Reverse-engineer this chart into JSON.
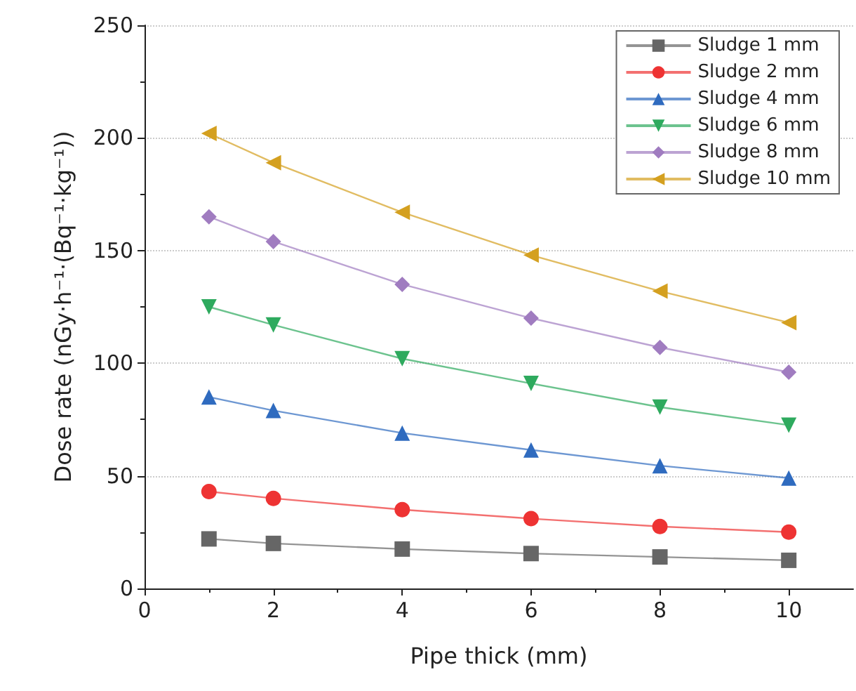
{
  "chart_data": {
    "type": "line",
    "xlabel": "Pipe thick (mm)",
    "ylabel": "Dose rate (nGy·h⁻¹·(Bq⁻¹·kg⁻¹))",
    "x": [
      1,
      2,
      4,
      6,
      8,
      10
    ],
    "series": [
      {
        "name": "Sludge 1 mm",
        "color": "#666666",
        "marker": "square",
        "values": [
          22,
          20,
          17.5,
          15.5,
          14,
          12.5
        ]
      },
      {
        "name": "Sludge 2 mm",
        "color": "#ee3333",
        "marker": "circle",
        "values": [
          43,
          40,
          35,
          31,
          27.5,
          25
        ]
      },
      {
        "name": "Sludge 4 mm",
        "color": "#2f6bbf",
        "marker": "triangle",
        "values": [
          85,
          79,
          69,
          61.5,
          54.5,
          49
        ]
      },
      {
        "name": "Sludge 6 mm",
        "color": "#2eaa5e",
        "marker": "triangle-down",
        "values": [
          125,
          117,
          102,
          91,
          80.5,
          72.5
        ]
      },
      {
        "name": "Sludge 8 mm",
        "color": "#a07cc0",
        "marker": "diamond",
        "values": [
          165,
          154,
          135,
          120,
          107,
          96
        ]
      },
      {
        "name": "Sludge 10 mm",
        "color": "#d4a020",
        "marker": "triangle-left",
        "values": [
          202,
          189,
          167,
          148,
          132,
          118
        ]
      }
    ],
    "xlim": [
      0,
      11
    ],
    "xticks": [
      0,
      2,
      4,
      6,
      8,
      10
    ],
    "ylim": [
      0,
      250
    ],
    "yticks": [
      0,
      50,
      100,
      150,
      200,
      250
    ],
    "grid": "y",
    "legend": "top right",
    "line_style": "solid"
  }
}
